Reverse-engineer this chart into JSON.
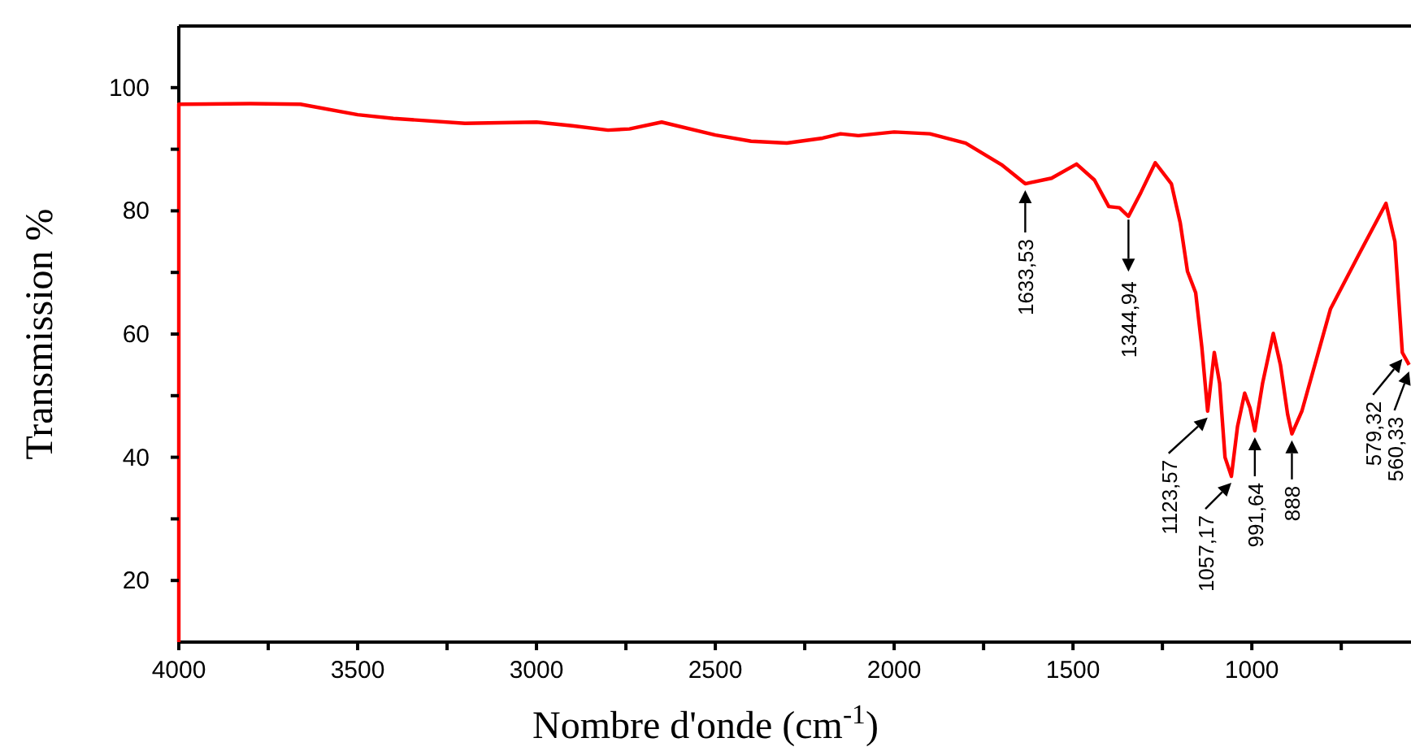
{
  "chart_data": {
    "type": "line",
    "xlabel": "Nombre d'onde (cm$^{-1}$)",
    "ylabel": "Transmission %",
    "xlim": [
      4000,
      555
    ],
    "ylim": [
      10,
      110
    ],
    "xticks": [
      4000,
      {
        "value": 3750,
        "label": null
      },
      3500,
      {
        "value": 3250,
        "label": null
      },
      3000,
      {
        "value": 2750,
        "label": null
      },
      2500,
      {
        "value": 2250,
        "label": null
      },
      2000,
      {
        "value": 1750,
        "label": null
      },
      1500,
      {
        "value": 1250,
        "label": null
      },
      1000,
      {
        "value": 750,
        "label": null
      }
    ],
    "yticks": [
      20,
      {
        "value": 30,
        "label": null
      },
      40,
      {
        "value": 50,
        "label": null
      },
      60,
      {
        "value": 70,
        "label": null
      },
      80,
      {
        "value": 90,
        "label": null
      },
      100
    ],
    "grid": false,
    "marker": "none",
    "line_style": "solid",
    "series": [
      {
        "color": "#ff0000",
        "x": [
          4000,
          4000,
          3800,
          3660,
          3500,
          3400,
          3200,
          3000,
          2900,
          2800,
          2740,
          2650,
          2500,
          2400,
          2300,
          2200,
          2150,
          2100,
          2000,
          1900,
          1800,
          1700,
          1633.53,
          1560,
          1490,
          1440,
          1400,
          1370,
          1344.94,
          1310,
          1270,
          1225,
          1200,
          1180,
          1157,
          1140,
          1123.57,
          1105,
          1090,
          1075,
          1057.17,
          1040,
          1020,
          1005,
          991.64,
          970,
          940,
          920,
          900,
          888,
          860,
          780,
          700,
          625,
          600,
          585,
          579.32,
          560.33
        ],
        "values": [
          10,
          97.3,
          97.4,
          97.3,
          95.6,
          95.0,
          94.2,
          94.4,
          93.8,
          93.1,
          93.3,
          94.4,
          92.3,
          91.3,
          91,
          91.8,
          92.5,
          92.2,
          92.8,
          92.5,
          91,
          87.5,
          84.4,
          85.3,
          87.6,
          85,
          80.7,
          80.5,
          79.1,
          83,
          87.8,
          84.4,
          78,
          70.2,
          66.7,
          58,
          47.5,
          57,
          52,
          40,
          36.9,
          45,
          50.4,
          48,
          44.3,
          52,
          60.1,
          55,
          47,
          43.8,
          47.5,
          64.1,
          73,
          81.2,
          75,
          62,
          57,
          55
        ]
      }
    ],
    "annotations": [
      {
        "text": "1633,53",
        "x": 1633.53,
        "y": 84.4
      },
      {
        "text": "1344,94",
        "x": 1344.94,
        "y": 79.1
      },
      {
        "text": "1123,57",
        "x": 1123.57,
        "y": 47.5
      },
      {
        "text": "1057,17",
        "x": 1057.17,
        "y": 36.9
      },
      {
        "text": "991,64",
        "x": 991.64,
        "y": 44.3
      },
      {
        "text": "888",
        "x": 888,
        "y": 43.8
      },
      {
        "text": "579,32",
        "x": 579.32,
        "y": 57
      },
      {
        "text": "560,33",
        "x": 560.33,
        "y": 55
      }
    ]
  }
}
